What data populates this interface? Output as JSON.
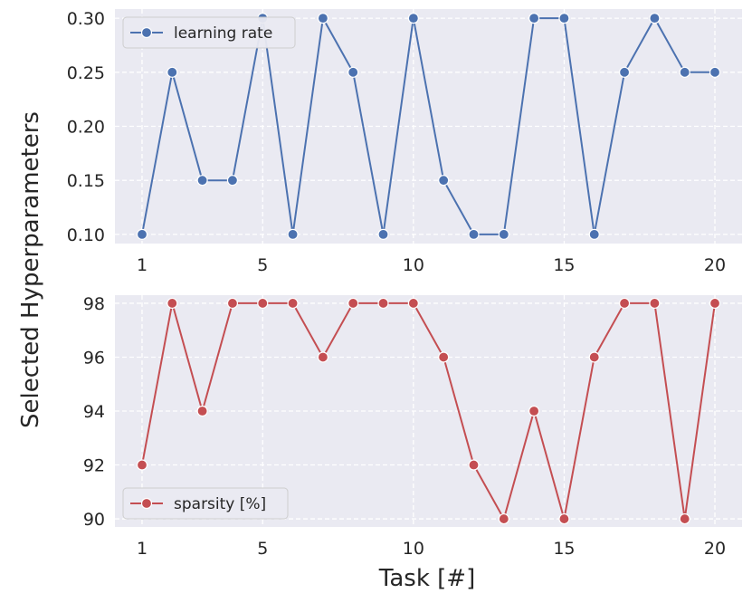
{
  "figure": {
    "ylabel": "Selected Hyperparameters",
    "xlabel": "Task [#]"
  },
  "chart_data": [
    {
      "type": "line",
      "x": [
        1,
        2,
        3,
        4,
        5,
        6,
        7,
        8,
        9,
        10,
        11,
        12,
        13,
        14,
        15,
        16,
        17,
        18,
        19,
        20
      ],
      "xticks": [
        1,
        5,
        10,
        15,
        20
      ],
      "xlim": [
        0.1,
        20.9
      ],
      "ylim": [
        0.0915,
        0.3085
      ],
      "yticks": [
        0.1,
        0.15,
        0.2,
        0.25,
        0.3
      ],
      "ytick_labels": [
        "0.10",
        "0.15",
        "0.20",
        "0.25",
        "0.30"
      ],
      "grid": true,
      "legend_position": "upper-left",
      "series": [
        {
          "name": "learning rate",
          "color": "#4c72b0",
          "marker": "circle",
          "values": [
            0.1,
            0.25,
            0.15,
            0.15,
            0.3,
            0.1,
            0.3,
            0.25,
            0.1,
            0.3,
            0.15,
            0.1,
            0.1,
            0.3,
            0.3,
            0.1,
            0.25,
            0.3,
            0.25,
            0.25
          ]
        }
      ]
    },
    {
      "type": "line",
      "x": [
        1,
        2,
        3,
        4,
        5,
        6,
        7,
        8,
        9,
        10,
        11,
        12,
        13,
        14,
        15,
        16,
        17,
        18,
        19,
        20
      ],
      "xticks": [
        1,
        5,
        10,
        15,
        20
      ],
      "xlim": [
        0.1,
        20.9
      ],
      "ylim": [
        89.7,
        98.3
      ],
      "yticks": [
        90,
        92,
        94,
        96,
        98
      ],
      "ytick_labels": [
        "90",
        "92",
        "94",
        "96",
        "98"
      ],
      "grid": true,
      "legend_position": "lower-left",
      "series": [
        {
          "name": "sparsity [%]",
          "color": "#c44e52",
          "marker": "circle",
          "values": [
            92,
            98,
            94,
            98,
            98,
            98,
            96,
            98,
            98,
            98,
            96,
            92,
            90,
            94,
            90,
            96,
            98,
            98,
            90,
            98
          ]
        }
      ]
    }
  ]
}
